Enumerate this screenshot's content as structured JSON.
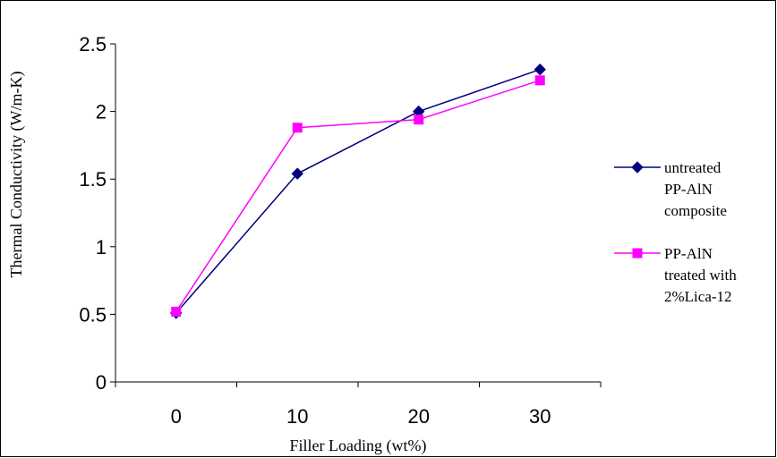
{
  "chart_data": {
    "type": "line",
    "categories": [
      "0",
      "10",
      "20",
      "30"
    ],
    "xlabel": "Filler Loading (wt%)",
    "ylabel": "Thermal Conductivity (W/m-K)",
    "ylim": [
      0,
      2.5
    ],
    "yticks": [
      "0",
      "0.5",
      "1",
      "1.5",
      "2",
      "2.5"
    ],
    "grid": false,
    "legend_position": "right",
    "series": [
      {
        "name_lines": [
          "untreated",
          "PP-AlN",
          "composite"
        ],
        "values": [
          0.51,
          1.54,
          2.0,
          2.31
        ],
        "color": "#000080",
        "marker": "diamond"
      },
      {
        "name_lines": [
          "PP-AlN",
          "treated with",
          "2%Lica-12"
        ],
        "values": [
          0.52,
          1.88,
          1.94,
          2.23
        ],
        "color": "#FF00FF",
        "marker": "square"
      }
    ]
  }
}
